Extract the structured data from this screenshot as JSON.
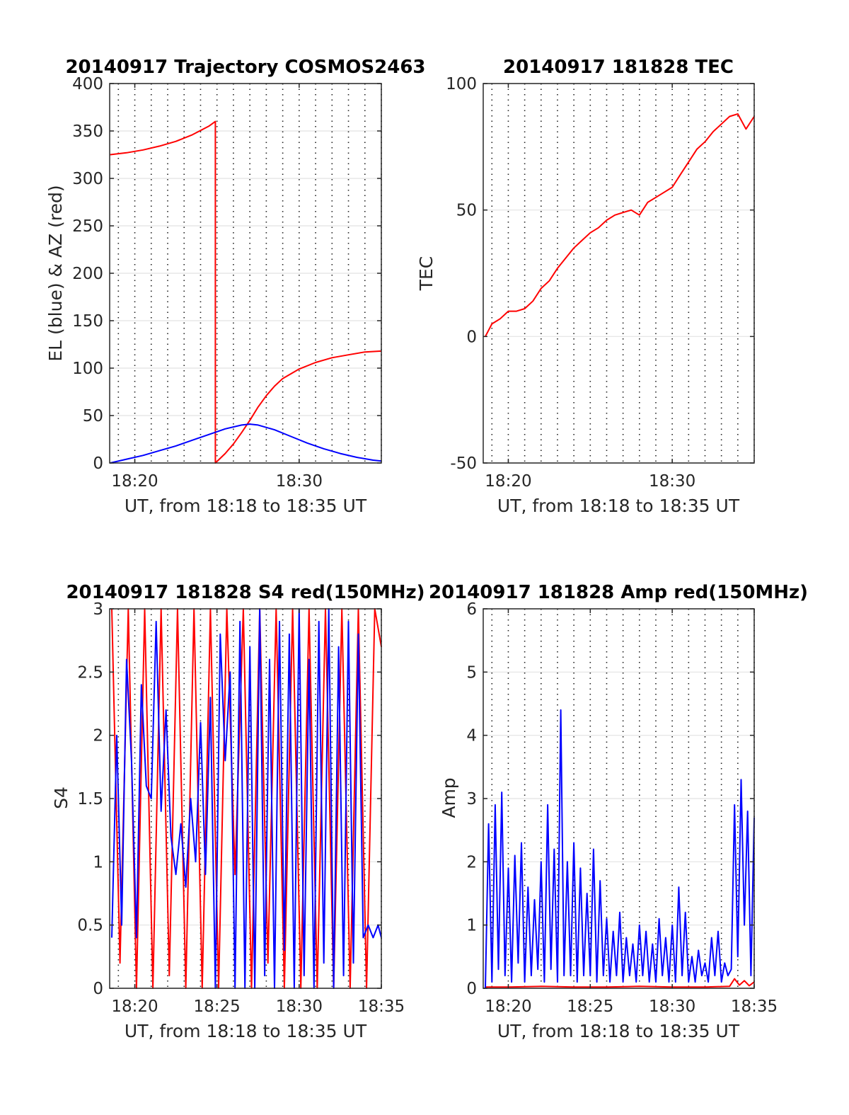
{
  "figure": {
    "panels": [
      {
        "title": "20140917 Trajectory COSMOS2463",
        "xlabel": "UT, from 18:18 to 18:35 UT",
        "ylabel": "EL (blue) & AZ (red)"
      },
      {
        "title": "20140917 181828 TEC",
        "xlabel": "UT, from 18:18 to 18:35 UT",
        "ylabel": "TEC"
      },
      {
        "title": "20140917 181828 S4 red(150MHz)",
        "xlabel": "UT, from 18:18 to 18:35 UT",
        "ylabel": "S4"
      },
      {
        "title": "20140917 181828 Amp red(150MHz)",
        "xlabel": "UT, from 18:18 to 18:35 UT",
        "ylabel": "Amp"
      }
    ]
  },
  "chart_data": [
    {
      "type": "line",
      "title": "20140917 Trajectory COSMOS2463",
      "xlabel": "UT, from 18:18 to 18:35 UT",
      "ylabel": "EL (blue) & AZ (red)",
      "x_unit": "minutes of hour 18 (UT)",
      "xlim": [
        18.47,
        35.0
      ],
      "ylim": [
        0,
        400
      ],
      "xticks": [
        20,
        30
      ],
      "xtick_labels": [
        "18:20",
        "18:30"
      ],
      "yticks": [
        0,
        50,
        100,
        150,
        200,
        250,
        300,
        350,
        400
      ],
      "ytick_labels": [
        "0",
        "50",
        "100",
        "150",
        "200",
        "250",
        "300",
        "350",
        "400"
      ],
      "grid": true,
      "series": [
        {
          "color": "#ff0000",
          "x": [
            18.5,
            19.5,
            20.5,
            21.5,
            22.5,
            23.5,
            24.5,
            24.9,
            24.9,
            25.5,
            26.0,
            26.5,
            27.0,
            27.5,
            28.0,
            28.5,
            29.0,
            30.0,
            31.0,
            32.0,
            33.0,
            34.0,
            35.0
          ],
          "y": [
            325,
            327,
            330,
            334,
            339,
            346,
            355,
            360,
            0,
            10,
            20,
            32,
            45,
            59,
            71,
            81,
            89,
            99,
            106,
            111,
            114,
            117,
            118
          ]
        },
        {
          "color": "#0000ff",
          "x": [
            18.5,
            19.5,
            20.5,
            21.5,
            22.5,
            23.5,
            24.5,
            25.5,
            26.5,
            27.0,
            27.5,
            28.5,
            29.5,
            30.5,
            31.5,
            32.5,
            33.5,
            34.5,
            35.0
          ],
          "y": [
            0,
            4,
            8,
            13,
            18,
            24,
            30,
            36,
            40,
            41,
            40,
            35,
            28,
            21,
            15,
            10,
            6,
            3,
            2
          ]
        }
      ]
    },
    {
      "type": "line",
      "title": "20140917 181828 TEC",
      "xlabel": "UT, from 18:18 to 18:35 UT",
      "ylabel": "TEC",
      "x_unit": "minutes of hour 18 (UT)",
      "xlim": [
        18.47,
        35.0
      ],
      "ylim": [
        -50,
        100
      ],
      "xticks": [
        20,
        30
      ],
      "xtick_labels": [
        "18:20",
        "18:30"
      ],
      "yticks": [
        -50,
        0,
        50,
        100
      ],
      "ytick_labels": [
        "-50",
        "0",
        "50",
        "100"
      ],
      "grid": true,
      "series": [
        {
          "color": "#ff0000",
          "x": [
            18.6,
            19.0,
            19.5,
            20.0,
            20.5,
            21.0,
            21.5,
            22.0,
            22.5,
            23.0,
            23.5,
            24.0,
            24.5,
            25.0,
            25.5,
            26.0,
            26.5,
            27.0,
            27.5,
            28.0,
            28.5,
            29.0,
            29.5,
            30.0,
            30.5,
            31.0,
            31.5,
            32.0,
            32.5,
            33.0,
            33.5,
            34.0,
            34.5,
            35.0
          ],
          "y": [
            0,
            5,
            7,
            10,
            10,
            11,
            14,
            19,
            22,
            27,
            31,
            35,
            38,
            41,
            43,
            46,
            48,
            49,
            50,
            48,
            53,
            55,
            57,
            59,
            64,
            69,
            74,
            77,
            81,
            84,
            87,
            88,
            82,
            87
          ]
        }
      ]
    },
    {
      "type": "line",
      "title": "20140917 181828 S4 red(150MHz)",
      "xlabel": "UT, from 18:18 to 18:35 UT",
      "ylabel": "S4",
      "x_unit": "minutes of hour 18 (UT)",
      "xlim": [
        18.47,
        35.0
      ],
      "ylim": [
        0,
        3
      ],
      "xticks": [
        20,
        25,
        30,
        35
      ],
      "xtick_labels": [
        "18:20",
        "18:25",
        "18:30",
        "18:35"
      ],
      "yticks": [
        0,
        0.5,
        1,
        1.5,
        2,
        2.5,
        3
      ],
      "ytick_labels": [
        "0",
        "0.5",
        "1",
        "1.5",
        "2",
        "2.5",
        "3"
      ],
      "grid": true,
      "series": [
        {
          "color": "#ff0000",
          "x": [
            18.6,
            19.1,
            19.6,
            20.1,
            20.6,
            21.1,
            21.6,
            22.1,
            22.6,
            23.1,
            23.6,
            24.1,
            24.6,
            25.1,
            25.6,
            26.1,
            26.6,
            27.1,
            27.6,
            28.1,
            28.6,
            29.1,
            29.6,
            30.1,
            30.6,
            31.1,
            31.6,
            32.1,
            32.6,
            33.1,
            33.6,
            34.1,
            34.6,
            35.0
          ],
          "y": [
            3,
            0.2,
            3,
            0,
            3,
            0,
            3,
            0.1,
            3,
            0,
            3,
            0,
            3,
            0,
            3,
            0.9,
            3,
            0,
            3,
            0.2,
            3,
            0,
            3,
            0,
            3,
            0,
            3,
            0,
            3,
            0,
            3,
            0,
            3,
            2.7
          ]
        },
        {
          "color": "#0000ff",
          "x": [
            18.6,
            18.9,
            19.2,
            19.5,
            19.8,
            20.1,
            20.4,
            20.7,
            21.0,
            21.3,
            21.6,
            21.9,
            22.2,
            22.5,
            22.8,
            23.1,
            23.4,
            23.7,
            24.0,
            24.3,
            24.6,
            24.9,
            25.2,
            25.5,
            25.8,
            26.1,
            26.4,
            26.7,
            27.0,
            27.3,
            27.6,
            27.9,
            28.2,
            28.5,
            28.8,
            29.1,
            29.4,
            29.7,
            30.0,
            30.3,
            30.6,
            30.9,
            31.2,
            31.5,
            31.8,
            32.1,
            32.4,
            32.7,
            33.0,
            33.3,
            33.6,
            33.9,
            34.2,
            34.5,
            34.8,
            35.0
          ],
          "y": [
            0.4,
            2.0,
            0.5,
            2.6,
            1.8,
            0.4,
            2.4,
            1.6,
            1.5,
            2.9,
            1.4,
            2.2,
            1.2,
            0.9,
            1.3,
            0.8,
            1.5,
            1.0,
            2.1,
            0.9,
            2.3,
            0.0,
            2.8,
            1.8,
            2.5,
            0.0,
            2.9,
            0.0,
            2.7,
            0.0,
            3.0,
            0.1,
            2.6,
            0.0,
            2.9,
            0.3,
            2.8,
            0.0,
            3.0,
            0.1,
            2.6,
            0.0,
            2.9,
            0.2,
            3.0,
            0.0,
            2.7,
            0.1,
            2.9,
            0.2,
            2.8,
            0.4,
            0.5,
            0.4,
            0.5,
            0.4
          ]
        }
      ]
    },
    {
      "type": "line",
      "title": "20140917 181828 Amp red(150MHz)",
      "xlabel": "UT, from 18:18 to 18:35 UT",
      "ylabel": "Amp",
      "x_unit": "minutes of hour 18 (UT)",
      "xlim": [
        18.47,
        35.0
      ],
      "ylim": [
        0,
        6
      ],
      "xticks": [
        20,
        25,
        30,
        35
      ],
      "xtick_labels": [
        "18:20",
        "18:25",
        "18:30",
        "18:35"
      ],
      "yticks": [
        0,
        1,
        2,
        3,
        4,
        5,
        6
      ],
      "ytick_labels": [
        "0",
        "1",
        "2",
        "3",
        "4",
        "5",
        "6"
      ],
      "grid": true,
      "series": [
        {
          "color": "#ff0000",
          "x": [
            18.6,
            20.0,
            22.0,
            24.0,
            26.0,
            28.0,
            30.0,
            32.0,
            33.5,
            33.8,
            34.1,
            34.4,
            34.7,
            35.0
          ],
          "y": [
            0.02,
            0.02,
            0.03,
            0.02,
            0.02,
            0.03,
            0.02,
            0.02,
            0.03,
            0.15,
            0.05,
            0.12,
            0.04,
            0.1
          ]
        },
        {
          "color": "#0000ff",
          "x": [
            18.6,
            18.8,
            19.0,
            19.2,
            19.4,
            19.6,
            19.8,
            20.0,
            20.2,
            20.4,
            20.6,
            20.8,
            21.0,
            21.2,
            21.4,
            21.6,
            21.8,
            22.0,
            22.2,
            22.4,
            22.6,
            22.8,
            23.0,
            23.2,
            23.4,
            23.6,
            23.8,
            24.0,
            24.2,
            24.4,
            24.6,
            24.8,
            25.0,
            25.2,
            25.4,
            25.6,
            25.8,
            26.0,
            26.2,
            26.4,
            26.6,
            26.8,
            27.0,
            27.2,
            27.4,
            27.6,
            27.8,
            28.0,
            28.2,
            28.4,
            28.6,
            28.8,
            29.0,
            29.2,
            29.4,
            29.6,
            29.8,
            30.0,
            30.2,
            30.4,
            30.6,
            30.8,
            31.0,
            31.2,
            31.4,
            31.6,
            31.8,
            32.0,
            32.2,
            32.4,
            32.6,
            32.8,
            33.0,
            33.2,
            33.4,
            33.6,
            33.8,
            34.0,
            34.2,
            34.4,
            34.6,
            34.8,
            35.0
          ],
          "y": [
            0.0,
            2.6,
            0.1,
            2.9,
            0.3,
            3.1,
            0.2,
            1.9,
            0.1,
            2.1,
            0.4,
            2.3,
            0.1,
            1.6,
            0.2,
            1.4,
            0.3,
            2.0,
            0.1,
            2.9,
            0.3,
            2.2,
            0.1,
            4.4,
            0.2,
            2.0,
            0.2,
            2.3,
            0.1,
            1.9,
            0.2,
            1.5,
            0.2,
            2.2,
            0.1,
            1.7,
            0.2,
            1.1,
            0.1,
            0.9,
            0.2,
            1.2,
            0.1,
            0.8,
            0.2,
            0.7,
            0.1,
            1.0,
            0.2,
            0.9,
            0.1,
            0.7,
            0.1,
            1.1,
            0.2,
            0.8,
            0.1,
            1.0,
            0.1,
            1.6,
            0.2,
            1.2,
            0.1,
            0.5,
            0.1,
            0.6,
            0.2,
            0.4,
            0.1,
            0.8,
            0.2,
            0.9,
            0.1,
            0.4,
            0.2,
            0.3,
            2.9,
            0.5,
            3.3,
            1.0,
            2.8,
            0.2,
            2.7
          ]
        }
      ]
    }
  ]
}
